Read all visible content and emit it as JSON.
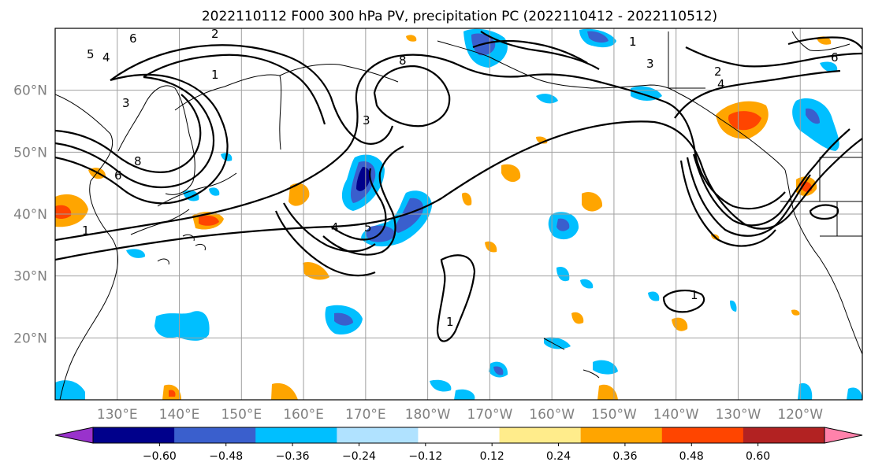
{
  "title": "2022110112 F000 300 hPa PV, precipitation PC (2022110412 - 2022110512)",
  "map": {
    "projection": "plate-carree",
    "lon_range_east": [
      120,
      250
    ],
    "lat_range": [
      10,
      70
    ],
    "lat_labels": [
      "60°N",
      "50°N",
      "40°N",
      "30°N",
      "20°N"
    ],
    "lon_labels": [
      "130°E",
      "140°E",
      "150°E",
      "160°E",
      "170°E",
      "180°W",
      "170°W",
      "160°W",
      "150°W",
      "140°W",
      "130°W",
      "120°W"
    ],
    "gridlines": true
  },
  "colorbar": {
    "tick_labels": [
      "−0.60",
      "−0.48",
      "−0.36",
      "−0.24",
      "−0.12",
      "0.12",
      "0.24",
      "0.36",
      "0.48",
      "0.60"
    ],
    "colors": [
      "#9932cc",
      "#00008b",
      "#3a5fcd",
      "#00bfff",
      "#b0e2ff",
      "#ffffff",
      "#ffec8b",
      "#ffa500",
      "#ff4500",
      "#b22222",
      "#ff82ab"
    ],
    "extend": "both"
  },
  "pv_contour_labels": [
    "1",
    "2",
    "3",
    "4",
    "5",
    "6",
    "8"
  ],
  "icons": [
    "coastline-shape",
    "pv-contour-line",
    "precip-anomaly-blob"
  ]
}
